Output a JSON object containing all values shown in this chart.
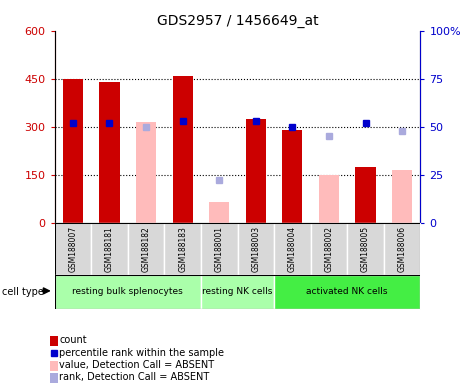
{
  "title": "GDS2957 / 1456649_at",
  "samples": [
    "GSM188007",
    "GSM188181",
    "GSM188182",
    "GSM188183",
    "GSM188001",
    "GSM188003",
    "GSM188004",
    "GSM188002",
    "GSM188005",
    "GSM188006"
  ],
  "count_values": [
    450,
    440,
    null,
    460,
    null,
    325,
    290,
    null,
    175,
    null
  ],
  "count_absent_values": [
    null,
    null,
    315,
    null,
    65,
    null,
    null,
    150,
    null,
    165
  ],
  "percentile_values": [
    52,
    52,
    null,
    53,
    null,
    53,
    50,
    null,
    52,
    null
  ],
  "rank_absent_values": [
    null,
    null,
    50,
    null,
    22,
    null,
    null,
    45,
    null,
    48
  ],
  "ylim_left": [
    0,
    600
  ],
  "ylim_right": [
    0,
    100
  ],
  "yticks_left": [
    0,
    150,
    300,
    450,
    600
  ],
  "yticks_right": [
    0,
    25,
    50,
    75,
    100
  ],
  "ytick_labels_left": [
    "0",
    "150",
    "300",
    "450",
    "600"
  ],
  "ytick_labels_right": [
    "0",
    "25",
    "50",
    "75",
    "100%"
  ],
  "bar_width": 0.55,
  "count_color": "#cc0000",
  "count_absent_color": "#ffbbbb",
  "percentile_color": "#0000cc",
  "rank_absent_color": "#aaaadd",
  "cell_types": [
    {
      "label": "resting bulk splenocytes",
      "start": 0,
      "end": 3,
      "color": "#aaffaa"
    },
    {
      "label": "resting NK cells",
      "start": 4,
      "end": 5,
      "color": "#aaffaa"
    },
    {
      "label": "activated NK cells",
      "start": 6,
      "end": 9,
      "color": "#44ee44"
    }
  ],
  "legend_items": [
    {
      "type": "square",
      "color": "#cc0000",
      "label": "count"
    },
    {
      "type": "square_marker",
      "color": "#0000cc",
      "label": "percentile rank within the sample"
    },
    {
      "type": "square",
      "color": "#ffbbbb",
      "label": "value, Detection Call = ABSENT"
    },
    {
      "type": "square",
      "color": "#aaaadd",
      "label": "rank, Detection Call = ABSENT"
    }
  ]
}
